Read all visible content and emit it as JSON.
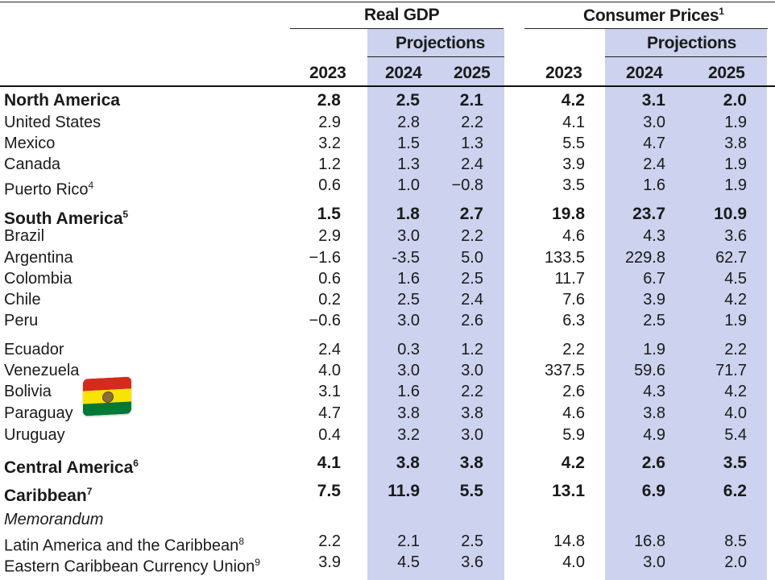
{
  "header": {
    "real_gdp": "Real GDP",
    "consumer_prices": "Consumer Prices",
    "consumer_prices_note": "1",
    "projections": "Projections",
    "years": [
      "2023",
      "2024",
      "2025",
      "2023",
      "2024",
      "2025"
    ]
  },
  "rows": [
    {
      "label": "North America",
      "note": "",
      "bold": true,
      "values": [
        "2.8",
        "2.5",
        "2.1",
        "4.2",
        "3.1",
        "2.0"
      ]
    },
    {
      "label": "United States",
      "note": "",
      "bold": false,
      "values": [
        "2.9",
        "2.8",
        "2.2",
        "4.1",
        "3.0",
        "1.9"
      ]
    },
    {
      "label": "Mexico",
      "note": "",
      "bold": false,
      "values": [
        "3.2",
        "1.5",
        "1.3",
        "5.5",
        "4.7",
        "3.8"
      ]
    },
    {
      "label": "Canada",
      "note": "",
      "bold": false,
      "values": [
        "1.2",
        "1.3",
        "2.4",
        "3.9",
        "2.4",
        "1.9"
      ]
    },
    {
      "label": "Puerto Rico",
      "note": "4",
      "bold": false,
      "values": [
        "0.6",
        "1.0",
        "−0.8",
        "3.5",
        "1.6",
        "1.9"
      ]
    },
    {
      "label": "South America",
      "note": "5",
      "bold": true,
      "values": [
        "1.5",
        "1.8",
        "2.7",
        "19.8",
        "23.7",
        "10.9"
      ]
    },
    {
      "label": "Brazil",
      "note": "",
      "bold": false,
      "values": [
        "2.9",
        "3.0",
        "2.2",
        "4.6",
        "4.3",
        "3.6"
      ]
    },
    {
      "label": "Argentina",
      "note": "",
      "bold": false,
      "values": [
        "−1.6",
        "-3.5",
        "5.0",
        "133.5",
        "229.8",
        "62.7"
      ]
    },
    {
      "label": "Colombia",
      "note": "",
      "bold": false,
      "values": [
        "0.6",
        "1.6",
        "2.5",
        "11.7",
        "6.7",
        "4.5"
      ]
    },
    {
      "label": "Chile",
      "note": "",
      "bold": false,
      "values": [
        "0.2",
        "2.5",
        "2.4",
        "7.6",
        "3.9",
        "4.2"
      ]
    },
    {
      "label": "Peru",
      "note": "",
      "bold": false,
      "values": [
        "−0.6",
        "3.0",
        "2.6",
        "6.3",
        "2.5",
        "1.9"
      ]
    },
    {
      "label": "Ecuador",
      "note": "",
      "bold": false,
      "values": [
        "2.4",
        "0.3",
        "1.2",
        "2.2",
        "1.9",
        "2.2"
      ]
    },
    {
      "label": "Venezuela",
      "note": "",
      "bold": false,
      "values": [
        "4.0",
        "3.0",
        "3.0",
        "337.5",
        "59.6",
        "71.7"
      ]
    },
    {
      "label": "Bolivia",
      "note": "",
      "bold": false,
      "values": [
        "3.1",
        "1.6",
        "2.2",
        "2.6",
        "4.3",
        "4.2"
      ]
    },
    {
      "label": "Paraguay",
      "note": "",
      "bold": false,
      "values": [
        "4.7",
        "3.8",
        "3.8",
        "4.6",
        "3.8",
        "4.0"
      ]
    },
    {
      "label": "Uruguay",
      "note": "",
      "bold": false,
      "values": [
        "0.4",
        "3.2",
        "3.0",
        "5.9",
        "4.9",
        "5.4"
      ]
    },
    {
      "label": "Central America",
      "note": "6",
      "bold": true,
      "values": [
        "4.1",
        "3.8",
        "3.8",
        "4.2",
        "2.6",
        "3.5"
      ]
    },
    {
      "label": "Caribbean",
      "note": "7",
      "bold": true,
      "values": [
        "7.5",
        "11.9",
        "5.5",
        "13.1",
        "6.9",
        "6.2"
      ]
    },
    {
      "label": "Memorandum",
      "note": "",
      "bold": false,
      "memo": true,
      "values": [
        "",
        "",
        "",
        "",
        "",
        ""
      ]
    },
    {
      "label": "Latin America and the Caribbean",
      "note": "8",
      "bold": false,
      "values": [
        "2.2",
        "2.1",
        "2.5",
        "14.8",
        "16.8",
        "8.5"
      ]
    },
    {
      "label": "Eastern Caribbean Currency Union",
      "note": "9",
      "bold": false,
      "values": [
        "3.9",
        "4.5",
        "3.6",
        "4.0",
        "3.0",
        "2.0"
      ]
    }
  ],
  "flag": {
    "icon": "bolivia-flag-emoji",
    "colors": [
      "#d52b1e",
      "#f9e300",
      "#007934"
    ]
  }
}
